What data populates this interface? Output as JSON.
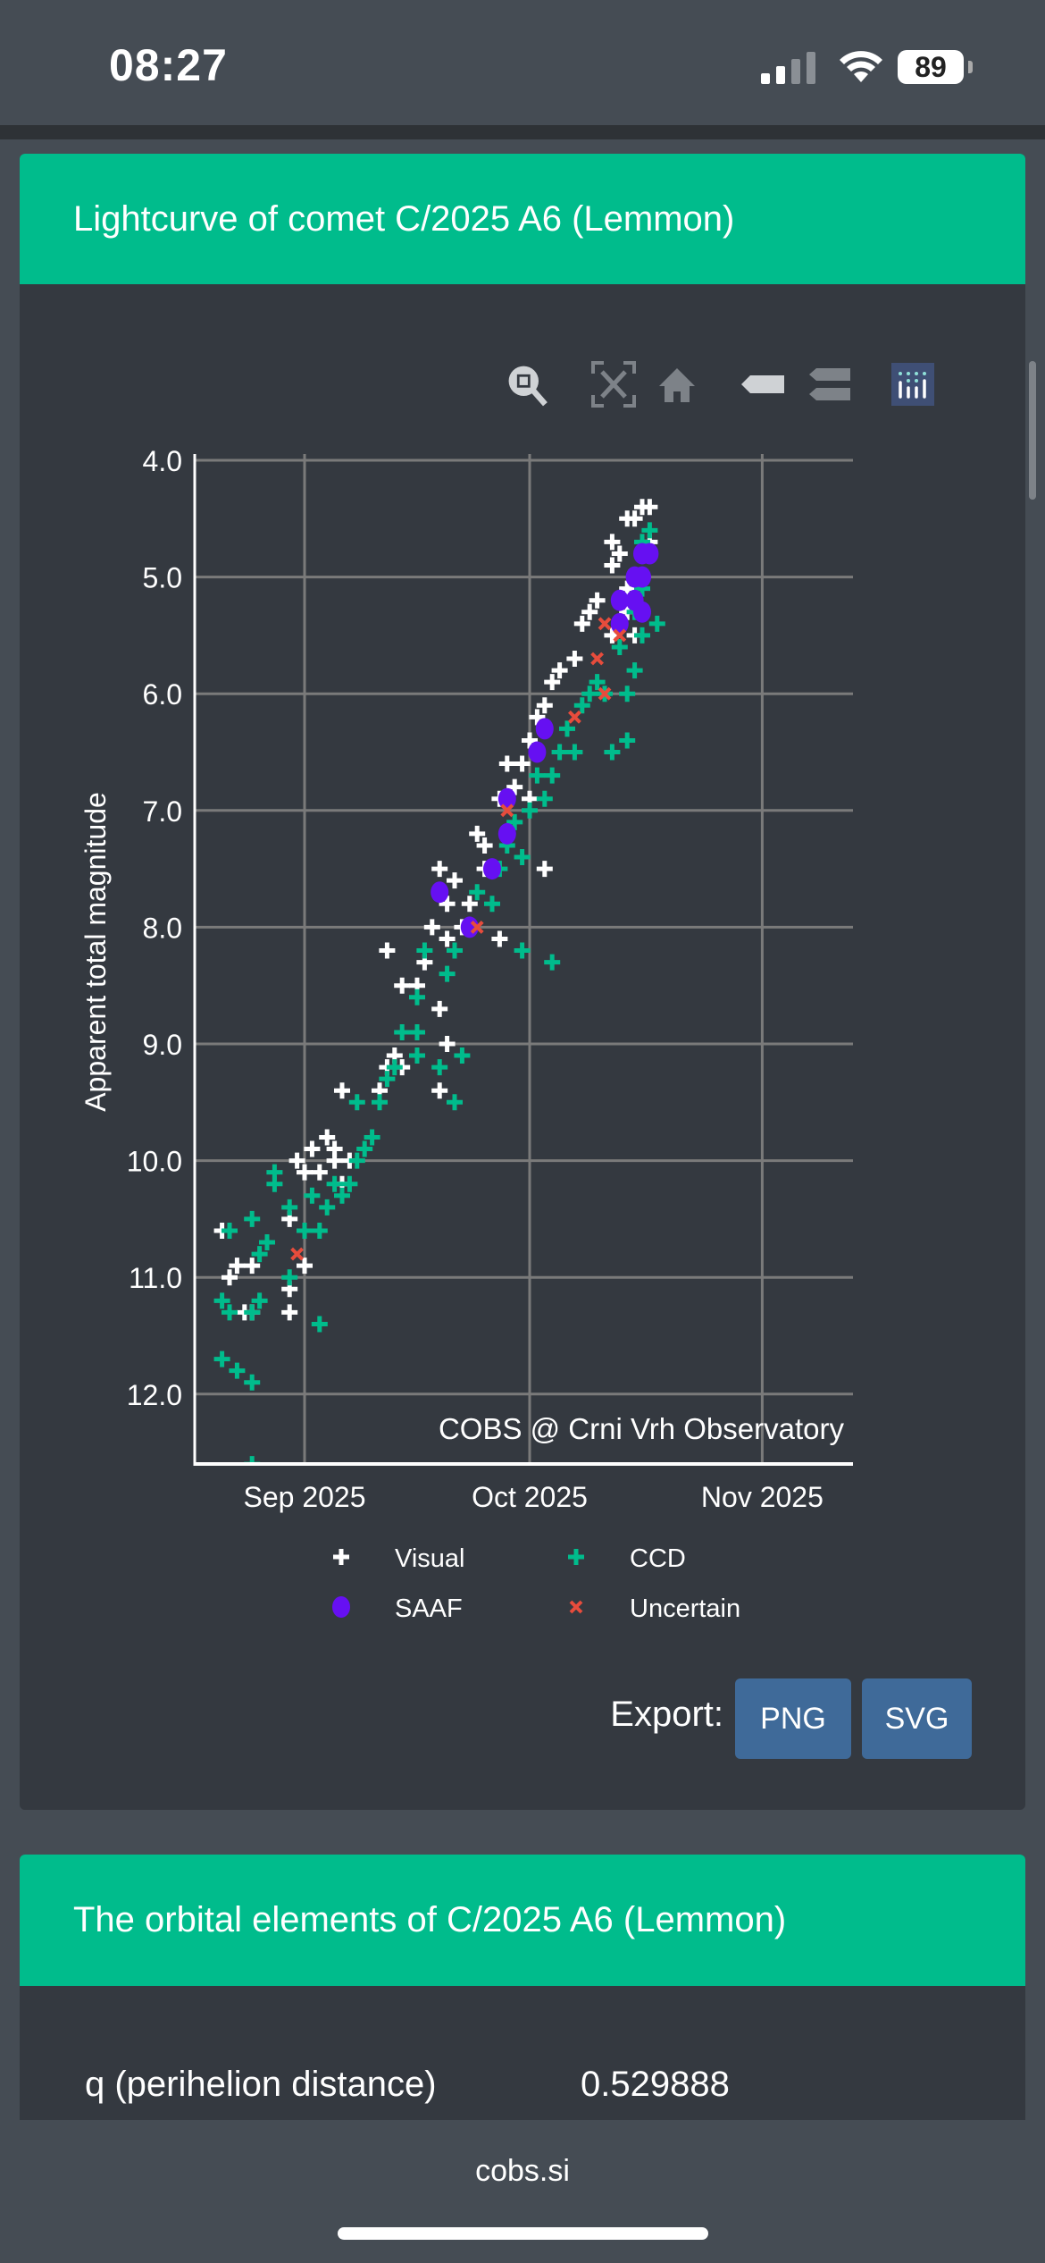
{
  "status_bar": {
    "time": "08:27",
    "battery": "89"
  },
  "card1": {
    "title": "Lightcurve of comet C/2025 A6 (Lemmon)"
  },
  "toolbar": [
    "zoom-icon",
    "autoscale-icon",
    "home-icon",
    "spike-lines-icon",
    "compare-hover-icon",
    "plotly-logo-icon"
  ],
  "export": {
    "label": "Export:",
    "png": "PNG",
    "svg": "SVG"
  },
  "card2": {
    "title": "The orbital elements of C/2025 A6 (Lemmon)",
    "rows": [
      {
        "label": "q (perihelion distance)",
        "value": "0.529888"
      }
    ]
  },
  "browser": {
    "url": "cobs.si"
  },
  "chart_data": {
    "type": "scatter",
    "ylabel": "Apparent total magnitude",
    "xlabel": "",
    "y_reversed": true,
    "ylim": [
      12.6,
      3.95
    ],
    "xlim": [
      "2025-08-17",
      "2025-11-13"
    ],
    "yticks": [
      "4.0",
      "5.0",
      "6.0",
      "7.0",
      "8.0",
      "9.0",
      "10.0",
      "11.0",
      "12.0"
    ],
    "xticks": [
      {
        "date": "2025-09-01",
        "label": "Sep 2025"
      },
      {
        "date": "2025-10-01",
        "label": "Oct 2025"
      },
      {
        "date": "2025-11-01",
        "label": "Nov 2025"
      }
    ],
    "grid": true,
    "annotation": "COBS @ Crni Vrh Observatory",
    "legend_position": "bottom",
    "series": [
      {
        "name": "Visual",
        "marker": "plus",
        "color": "#ffffff",
        "points": [
          [
            "2025-08-21",
            10.6
          ],
          [
            "2025-08-22",
            11.0
          ],
          [
            "2025-08-24",
            11.3
          ],
          [
            "2025-08-25",
            11.3
          ],
          [
            "2025-08-23",
            10.9
          ],
          [
            "2025-08-25",
            10.9
          ],
          [
            "2025-08-30",
            10.5
          ],
          [
            "2025-08-30",
            11.3
          ],
          [
            "2025-08-30",
            11.1
          ],
          [
            "2025-09-01",
            10.9
          ],
          [
            "2025-09-01",
            10.1
          ],
          [
            "2025-08-31",
            10.0
          ],
          [
            "2025-09-02",
            9.9
          ],
          [
            "2025-09-03",
            10.1
          ],
          [
            "2025-09-05",
            9.9
          ],
          [
            "2025-09-05",
            10.0
          ],
          [
            "2025-09-07",
            10.0
          ],
          [
            "2025-09-06",
            10.2
          ],
          [
            "2025-09-04",
            9.8
          ],
          [
            "2025-09-06",
            9.4
          ],
          [
            "2025-09-11",
            9.4
          ],
          [
            "2025-09-12",
            9.2
          ],
          [
            "2025-09-13",
            9.1
          ],
          [
            "2025-09-14",
            9.2
          ],
          [
            "2025-09-12",
            8.2
          ],
          [
            "2025-09-14",
            8.5
          ],
          [
            "2025-09-16",
            8.5
          ],
          [
            "2025-09-17",
            8.3
          ],
          [
            "2025-09-18",
            8.0
          ],
          [
            "2025-09-19",
            7.7
          ],
          [
            "2025-09-19",
            7.5
          ],
          [
            "2025-09-20",
            7.8
          ],
          [
            "2025-09-20",
            8.1
          ],
          [
            "2025-09-20",
            9.0
          ],
          [
            "2025-09-19",
            9.4
          ],
          [
            "2025-09-19",
            8.7
          ],
          [
            "2025-09-21",
            7.6
          ],
          [
            "2025-09-23",
            7.8
          ],
          [
            "2025-09-22",
            8.0
          ],
          [
            "2025-09-27",
            8.1
          ],
          [
            "2025-09-24",
            7.2
          ],
          [
            "2025-09-25",
            7.3
          ],
          [
            "2025-09-25",
            7.5
          ],
          [
            "2025-09-27",
            6.9
          ],
          [
            "2025-09-28",
            6.6
          ],
          [
            "2025-09-30",
            6.6
          ],
          [
            "2025-09-29",
            6.8
          ],
          [
            "2025-10-01",
            6.9
          ],
          [
            "2025-10-03",
            7.5
          ],
          [
            "2025-10-01",
            6.4
          ],
          [
            "2025-10-02",
            6.2
          ],
          [
            "2025-10-03",
            6.1
          ],
          [
            "2025-10-04",
            5.9
          ],
          [
            "2025-10-05",
            5.8
          ],
          [
            "2025-10-07",
            5.7
          ],
          [
            "2025-10-08",
            5.4
          ],
          [
            "2025-10-09",
            5.3
          ],
          [
            "2025-10-10",
            5.2
          ],
          [
            "2025-10-12",
            4.9
          ],
          [
            "2025-10-12",
            4.7
          ],
          [
            "2025-10-13",
            4.8
          ],
          [
            "2025-10-14",
            4.5
          ],
          [
            "2025-10-15",
            4.5
          ],
          [
            "2025-10-16",
            4.4
          ],
          [
            "2025-10-17",
            4.4
          ],
          [
            "2025-10-16",
            5.0
          ],
          [
            "2025-10-15",
            5.5
          ],
          [
            "2025-10-14",
            5.1
          ],
          [
            "2025-10-17",
            4.7
          ],
          [
            "2025-10-12",
            5.5
          ],
          [
            "2025-10-14",
            5.3
          ]
        ]
      },
      {
        "name": "CCD",
        "marker": "plus",
        "color": "#00bc8c",
        "points": [
          [
            "2025-08-21",
            11.7
          ],
          [
            "2025-08-23",
            11.8
          ],
          [
            "2025-08-25",
            11.9
          ],
          [
            "2025-08-21",
            11.2
          ],
          [
            "2025-08-22",
            11.3
          ],
          [
            "2025-08-26",
            11.2
          ],
          [
            "2025-08-25",
            11.3
          ],
          [
            "2025-08-22",
            10.6
          ],
          [
            "2025-08-25",
            10.5
          ],
          [
            "2025-08-26",
            10.8
          ],
          [
            "2025-08-27",
            10.7
          ],
          [
            "2025-08-30",
            11.0
          ],
          [
            "2025-09-03",
            11.4
          ],
          [
            "2025-08-28",
            10.2
          ],
          [
            "2025-08-28",
            10.1
          ],
          [
            "2025-08-30",
            10.4
          ],
          [
            "2025-09-02",
            10.3
          ],
          [
            "2025-09-03",
            10.6
          ],
          [
            "2025-09-01",
            10.6
          ],
          [
            "2025-09-04",
            10.4
          ],
          [
            "2025-09-05",
            10.2
          ],
          [
            "2025-09-06",
            10.3
          ],
          [
            "2025-09-07",
            10.2
          ],
          [
            "2025-09-08",
            10.0
          ],
          [
            "2025-09-09",
            9.9
          ],
          [
            "2025-09-10",
            9.8
          ],
          [
            "2025-09-08",
            9.5
          ],
          [
            "2025-09-11",
            9.5
          ],
          [
            "2025-09-12",
            9.3
          ],
          [
            "2025-09-13",
            9.2
          ],
          [
            "2025-09-14",
            8.9
          ],
          [
            "2025-09-16",
            8.9
          ],
          [
            "2025-09-16",
            9.1
          ],
          [
            "2025-09-19",
            9.2
          ],
          [
            "2025-09-21",
            9.5
          ],
          [
            "2025-09-22",
            9.1
          ],
          [
            "2025-09-16",
            8.6
          ],
          [
            "2025-09-17",
            8.2
          ],
          [
            "2025-09-20",
            8.4
          ],
          [
            "2025-09-21",
            8.2
          ],
          [
            "2025-09-23",
            8.0
          ],
          [
            "2025-09-24",
            7.7
          ],
          [
            "2025-09-26",
            7.8
          ],
          [
            "2025-09-27",
            7.5
          ],
          [
            "2025-09-28",
            7.3
          ],
          [
            "2025-09-29",
            7.1
          ],
          [
            "2025-09-30",
            7.4
          ],
          [
            "2025-10-01",
            7.0
          ],
          [
            "2025-10-02",
            6.7
          ],
          [
            "2025-10-03",
            6.9
          ],
          [
            "2025-10-04",
            6.7
          ],
          [
            "2025-10-05",
            6.5
          ],
          [
            "2025-10-06",
            6.3
          ],
          [
            "2025-10-07",
            6.5
          ],
          [
            "2025-09-30",
            8.2
          ],
          [
            "2025-10-04",
            8.3
          ],
          [
            "2025-10-08",
            6.1
          ],
          [
            "2025-10-09",
            6.0
          ],
          [
            "2025-10-10",
            5.9
          ],
          [
            "2025-10-11",
            6.0
          ],
          [
            "2025-10-12",
            6.5
          ],
          [
            "2025-10-14",
            6.4
          ],
          [
            "2025-10-14",
            6.0
          ],
          [
            "2025-10-13",
            5.6
          ],
          [
            "2025-10-15",
            5.8
          ],
          [
            "2025-10-16",
            5.5
          ],
          [
            "2025-10-18",
            5.4
          ],
          [
            "2025-10-16",
            5.1
          ],
          [
            "2025-10-16",
            4.7
          ],
          [
            "2025-10-17",
            4.6
          ],
          [
            "2025-10-15",
            5.3
          ],
          [
            "2025-08-25",
            12.6
          ]
        ]
      },
      {
        "name": "SAAF",
        "marker": "circle",
        "color": "#6610f2",
        "points": [
          [
            "2025-10-16",
            4.8
          ],
          [
            "2025-10-17",
            4.8
          ],
          [
            "2025-10-15",
            5.0
          ],
          [
            "2025-10-16",
            5.0
          ],
          [
            "2025-10-13",
            5.2
          ],
          [
            "2025-10-15",
            5.2
          ],
          [
            "2025-10-16",
            5.3
          ],
          [
            "2025-10-13",
            5.4
          ],
          [
            "2025-10-03",
            6.3
          ],
          [
            "2025-10-02",
            6.5
          ],
          [
            "2025-09-28",
            6.9
          ],
          [
            "2025-09-28",
            7.2
          ],
          [
            "2025-09-26",
            7.5
          ],
          [
            "2025-09-19",
            7.7
          ],
          [
            "2025-09-23",
            8.0
          ]
        ]
      },
      {
        "name": "Uncertain",
        "marker": "x",
        "color": "#e74c3c",
        "points": [
          [
            "2025-10-11",
            5.4
          ],
          [
            "2025-10-13",
            5.5
          ],
          [
            "2025-10-10",
            5.7
          ],
          [
            "2025-10-11",
            6.0
          ],
          [
            "2025-10-07",
            6.2
          ],
          [
            "2025-09-28",
            7.0
          ],
          [
            "2025-09-24",
            8.0
          ],
          [
            "2025-08-31",
            10.8
          ]
        ]
      }
    ]
  }
}
